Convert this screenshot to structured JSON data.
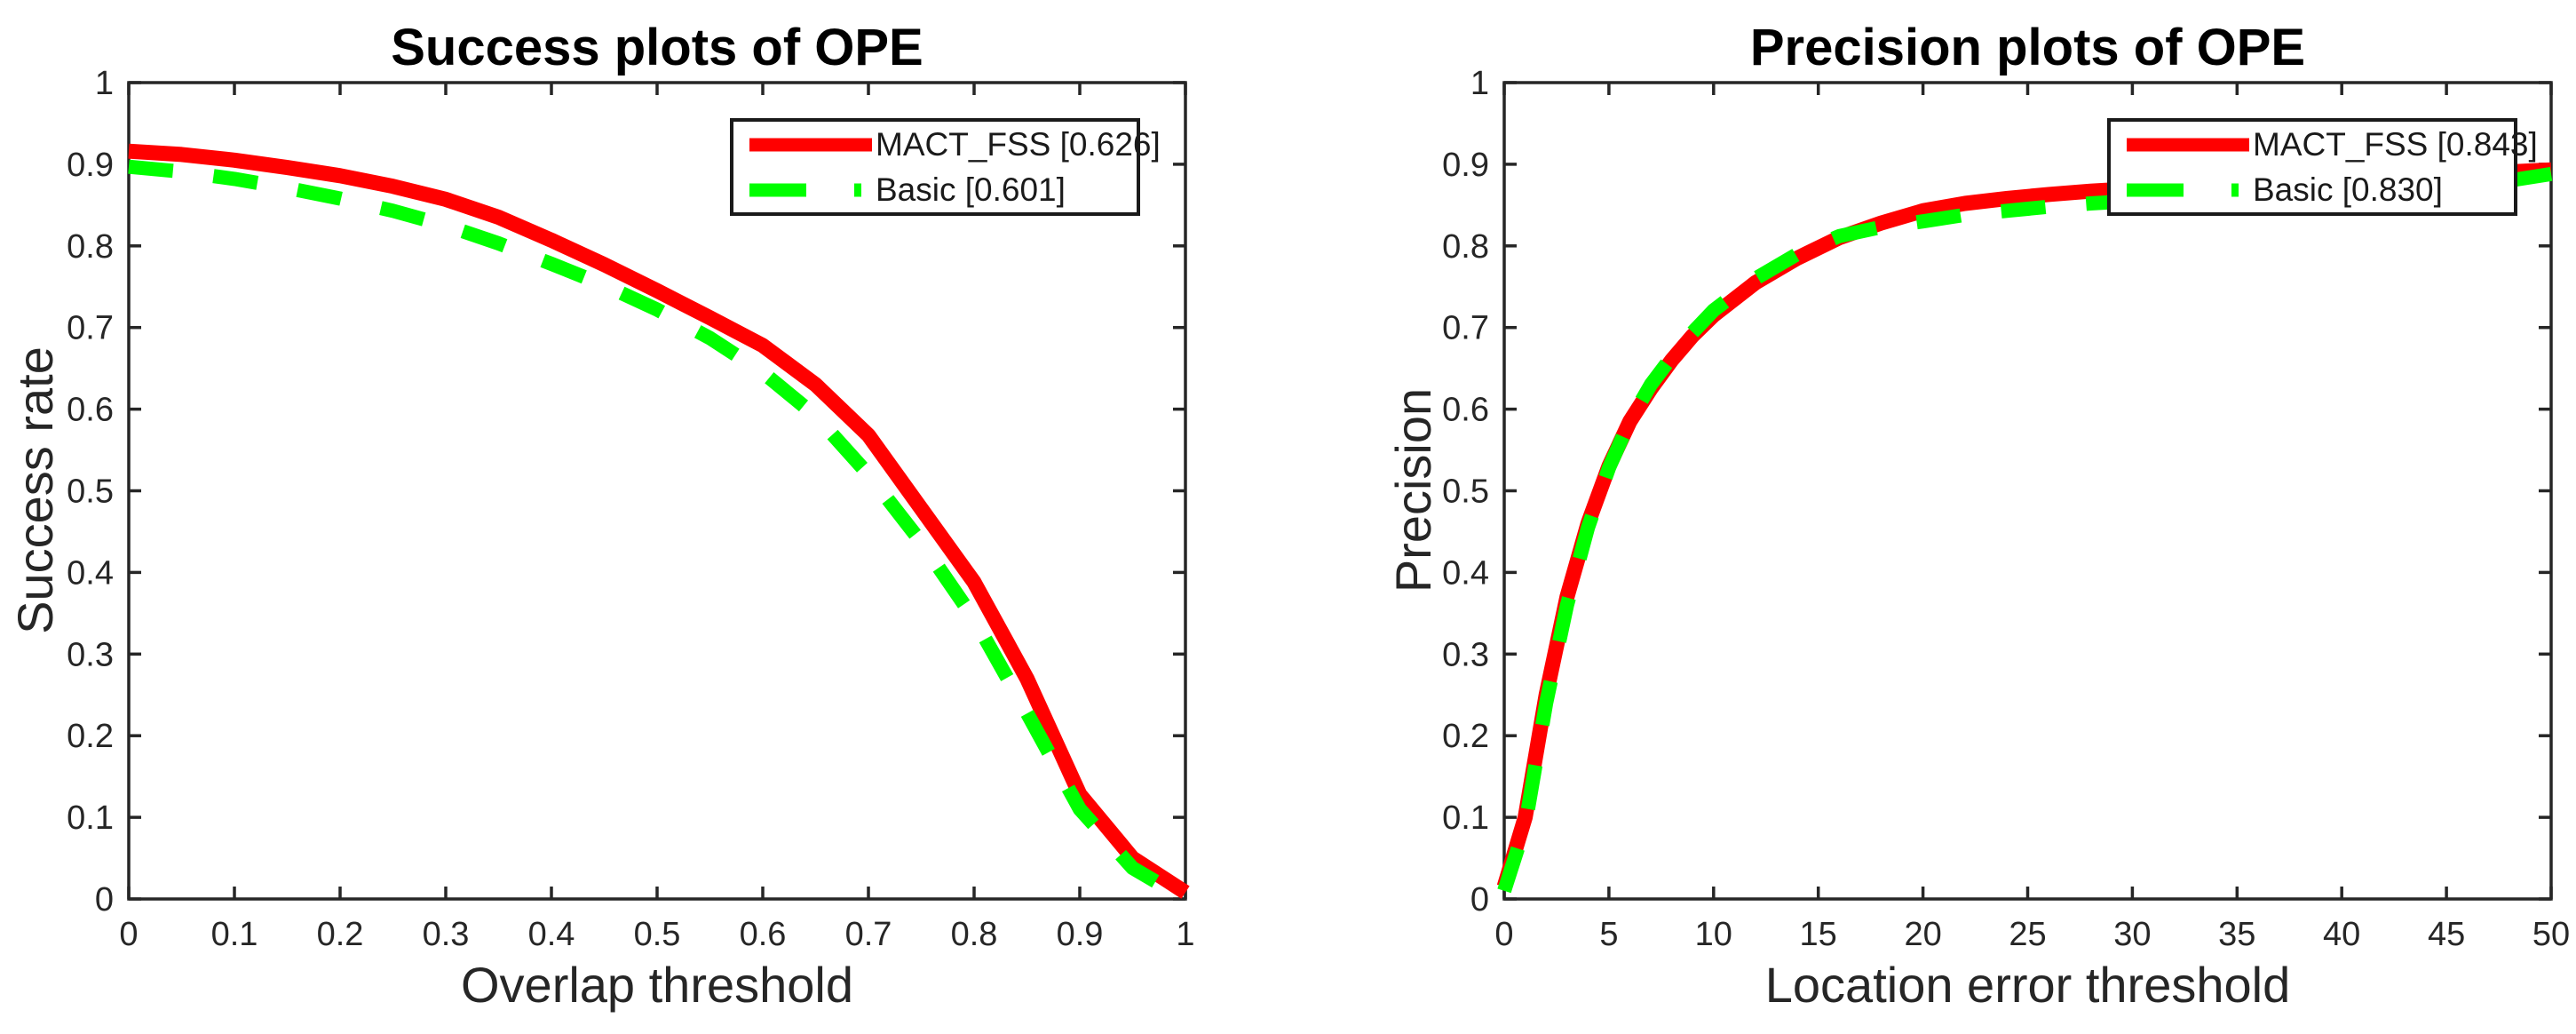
{
  "figure": {
    "background_color": "#ffffff",
    "axis_color": "#262626",
    "title_color": "#000000",
    "legend_border_color": "#1a1a1a"
  },
  "chart_data": [
    {
      "type": "line",
      "title": "Success plots of OPE",
      "xlabel": "Overlap threshold",
      "ylabel": "Success rate",
      "xlim": [
        0,
        1
      ],
      "ylim": [
        0,
        1
      ],
      "grid": false,
      "legend_position": "upper right inside",
      "x_tick_labels": [
        "0",
        "0.1",
        "0.2",
        "0.3",
        "0.4",
        "0.5",
        "0.6",
        "0.7",
        "0.8",
        "0.9",
        "1"
      ],
      "x_tick_values": [
        0,
        0.1,
        0.2,
        0.3,
        0.4,
        0.5,
        0.6,
        0.7,
        0.8,
        0.9,
        1
      ],
      "y_tick_labels": [
        "0",
        "0.1",
        "0.2",
        "0.3",
        "0.4",
        "0.5",
        "0.6",
        "0.7",
        "0.8",
        "0.9",
        "1"
      ],
      "y_tick_values": [
        0,
        0.1,
        0.2,
        0.3,
        0.4,
        0.5,
        0.6,
        0.7,
        0.8,
        0.9,
        1
      ],
      "series": [
        {
          "name": "MACT_FSS",
          "legend_label": "MACT_FSS [0.626]",
          "score": 0.626,
          "color": "#FF0000",
          "line_style": "solid",
          "x": [
            0,
            0.05,
            0.1,
            0.15,
            0.2,
            0.25,
            0.3,
            0.35,
            0.4,
            0.45,
            0.5,
            0.55,
            0.6,
            0.65,
            0.7,
            0.75,
            0.8,
            0.85,
            0.9,
            0.95,
            1
          ],
          "y": [
            0.916,
            0.912,
            0.905,
            0.896,
            0.886,
            0.873,
            0.857,
            0.835,
            0.807,
            0.777,
            0.745,
            0.712,
            0.678,
            0.63,
            0.568,
            0.478,
            0.388,
            0.27,
            0.128,
            0.05,
            0.008
          ]
        },
        {
          "name": "Basic",
          "legend_label": "Basic [0.601]",
          "score": 0.601,
          "color": "#00FF00",
          "line_style": "dashed",
          "x": [
            0,
            0.05,
            0.1,
            0.15,
            0.2,
            0.25,
            0.3,
            0.35,
            0.4,
            0.45,
            0.5,
            0.55,
            0.6,
            0.65,
            0.7,
            0.75,
            0.8,
            0.85,
            0.9,
            0.95,
            1
          ],
          "y": [
            0.897,
            0.891,
            0.882,
            0.871,
            0.858,
            0.843,
            0.825,
            0.803,
            0.778,
            0.752,
            0.722,
            0.687,
            0.645,
            0.592,
            0.52,
            0.437,
            0.343,
            0.228,
            0.11,
            0.038,
            0.0
          ]
        }
      ]
    },
    {
      "type": "line",
      "title": "Precision plots of OPE",
      "xlabel": "Location error threshold",
      "ylabel": "Precision",
      "xlim": [
        0,
        50
      ],
      "ylim": [
        0,
        1
      ],
      "grid": false,
      "legend_position": "upper right inside",
      "x_tick_labels": [
        "0",
        "5",
        "10",
        "15",
        "20",
        "25",
        "30",
        "35",
        "40",
        "45",
        "50"
      ],
      "x_tick_values": [
        0,
        5,
        10,
        15,
        20,
        25,
        30,
        35,
        40,
        45,
        50
      ],
      "y_tick_labels": [
        "0",
        "0.1",
        "0.2",
        "0.3",
        "0.4",
        "0.5",
        "0.6",
        "0.7",
        "0.8",
        "0.9",
        "1"
      ],
      "y_tick_values": [
        0,
        0.1,
        0.2,
        0.3,
        0.4,
        0.5,
        0.6,
        0.7,
        0.8,
        0.9,
        1
      ],
      "series": [
        {
          "name": "MACT_FSS",
          "legend_label": "MACT_FSS [0.843]",
          "score": 0.843,
          "color": "#FF0000",
          "line_style": "solid",
          "x": [
            0,
            1,
            2,
            3,
            4,
            5,
            6,
            7,
            8,
            9,
            10,
            12,
            14,
            16,
            18,
            20,
            22,
            24,
            26,
            28,
            30,
            32.5,
            35,
            37.5,
            40,
            42.5,
            45,
            47.5,
            50
          ],
          "y": [
            0.015,
            0.1,
            0.25,
            0.37,
            0.46,
            0.53,
            0.585,
            0.625,
            0.66,
            0.69,
            0.715,
            0.755,
            0.785,
            0.81,
            0.828,
            0.843,
            0.852,
            0.858,
            0.863,
            0.867,
            0.87,
            0.873,
            0.876,
            0.878,
            0.88,
            0.883,
            0.886,
            0.89,
            0.893
          ]
        },
        {
          "name": "Basic",
          "legend_label": "Basic [0.830]",
          "score": 0.83,
          "color": "#00FF00",
          "line_style": "dashed",
          "x": [
            0,
            1,
            2,
            3,
            4,
            5,
            6,
            7,
            8,
            9,
            10,
            12,
            14,
            16,
            18,
            20,
            22,
            24,
            26,
            28,
            30,
            32.5,
            35,
            37.5,
            40,
            42.5,
            45,
            47.5,
            50
          ],
          "y": [
            0.01,
            0.09,
            0.24,
            0.36,
            0.455,
            0.528,
            0.586,
            0.63,
            0.664,
            0.694,
            0.721,
            0.76,
            0.79,
            0.812,
            0.823,
            0.83,
            0.838,
            0.843,
            0.848,
            0.852,
            0.855,
            0.858,
            0.861,
            0.863,
            0.865,
            0.868,
            0.872,
            0.878,
            0.888
          ]
        }
      ]
    }
  ]
}
